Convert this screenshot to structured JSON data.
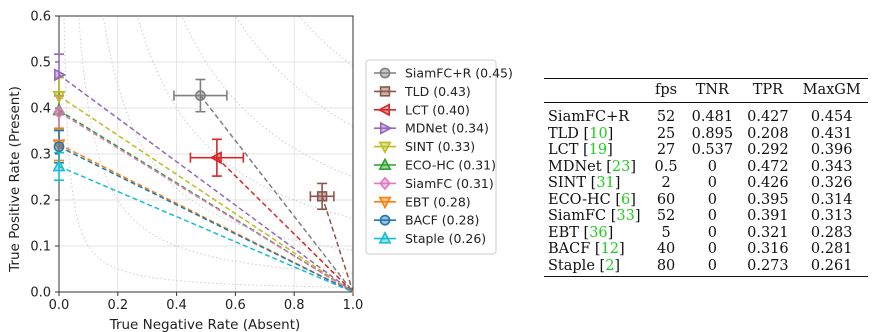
{
  "chart_data": {
    "type": "scatter",
    "xlabel": "True Negative Rate (Absent)",
    "ylabel": "True Positive Rate (Present)",
    "xlim": [
      0.0,
      1.0
    ],
    "ylim": [
      0.0,
      0.6
    ],
    "xticks": [
      "0.0",
      "0.2",
      "0.4",
      "0.6",
      "0.8",
      "1.0"
    ],
    "yticks": [
      "0.0",
      "0.1",
      "0.2",
      "0.3",
      "0.4",
      "0.5",
      "0.6"
    ],
    "grid": true,
    "legend_position": "right",
    "anchor_point": {
      "x": 1.0,
      "y": 0.0
    },
    "series": [
      {
        "name": "SiamFC+R (0.45)",
        "marker": "circle",
        "color": "#7f7f7f",
        "x": 0.481,
        "y": 0.427,
        "xerr": 0.09,
        "yerr": 0.035
      },
      {
        "name": "TLD (0.43)",
        "marker": "square",
        "color": "#8c564b",
        "x": 0.895,
        "y": 0.208,
        "xerr": 0.04,
        "yerr": 0.028
      },
      {
        "name": "LCT (0.40)",
        "marker": "triangle-left",
        "color": "#d62728",
        "x": 0.537,
        "y": 0.292,
        "xerr": 0.09,
        "yerr": 0.04
      },
      {
        "name": "MDNet (0.34)",
        "marker": "triangle-right",
        "color": "#9467bd",
        "x": 0.0,
        "y": 0.472,
        "xerr": 0,
        "yerr": 0.045
      },
      {
        "name": "SINT (0.33)",
        "marker": "triangle-down",
        "color": "#bcbd22",
        "x": 0.0,
        "y": 0.426,
        "xerr": 0,
        "yerr": 0.04
      },
      {
        "name": "ECO-HC (0.31)",
        "marker": "triangle-up",
        "color": "#2ca02c",
        "x": 0.0,
        "y": 0.395,
        "xerr": 0,
        "yerr": 0.04
      },
      {
        "name": "SiamFC (0.31)",
        "marker": "diamond",
        "color": "#e377c2",
        "x": 0.0,
        "y": 0.391,
        "xerr": 0,
        "yerr": 0.035
      },
      {
        "name": "EBT (0.28)",
        "marker": "triangle-down",
        "color": "#ff7f0e",
        "x": 0.0,
        "y": 0.321,
        "xerr": 0,
        "yerr": 0.035
      },
      {
        "name": "BACF (0.28)",
        "marker": "circle",
        "color": "#1f77b4",
        "x": 0.0,
        "y": 0.316,
        "xerr": 0,
        "yerr": 0.035
      },
      {
        "name": "Staple (0.26)",
        "marker": "triangle-up",
        "color": "#17becf",
        "x": 0.0,
        "y": 0.273,
        "xerr": 0,
        "yerr": 0.03
      }
    ],
    "iso_curves": [
      0.1,
      0.2,
      0.3,
      0.4,
      0.5,
      0.6,
      0.7,
      0.8
    ]
  },
  "table": {
    "columns": [
      "",
      "fps",
      "TNR",
      "TPR",
      "MaxGM"
    ],
    "rows": [
      {
        "method": "SiamFC+R",
        "cite": "",
        "fps": "52",
        "tnr": "0.481",
        "tpr": "0.427",
        "maxgm": "0.454"
      },
      {
        "method": "TLD ",
        "cite": "10",
        "fps": "25",
        "tnr": "0.895",
        "tpr": "0.208",
        "maxgm": "0.431"
      },
      {
        "method": "LCT ",
        "cite": "19",
        "fps": "27",
        "tnr": "0.537",
        "tpr": "0.292",
        "maxgm": "0.396"
      },
      {
        "method": "MDNet ",
        "cite": "23",
        "fps": "0.5",
        "tnr": "0",
        "tpr": "0.472",
        "maxgm": "0.343"
      },
      {
        "method": "SINT ",
        "cite": "31",
        "fps": "2",
        "tnr": "0",
        "tpr": "0.426",
        "maxgm": "0.326"
      },
      {
        "method": "ECO-HC ",
        "cite": "6",
        "fps": "60",
        "tnr": "0",
        "tpr": "0.395",
        "maxgm": "0.314"
      },
      {
        "method": "SiamFC ",
        "cite": "33",
        "fps": "52",
        "tnr": "0",
        "tpr": "0.391",
        "maxgm": "0.313"
      },
      {
        "method": "EBT ",
        "cite": "36",
        "fps": "5",
        "tnr": "0",
        "tpr": "0.321",
        "maxgm": "0.283"
      },
      {
        "method": "BACF ",
        "cite": "12",
        "fps": "40",
        "tnr": "0",
        "tpr": "0.316",
        "maxgm": "0.281"
      },
      {
        "method": "Staple ",
        "cite": "2",
        "fps": "80",
        "tnr": "0",
        "tpr": "0.273",
        "maxgm": "0.261"
      }
    ]
  }
}
